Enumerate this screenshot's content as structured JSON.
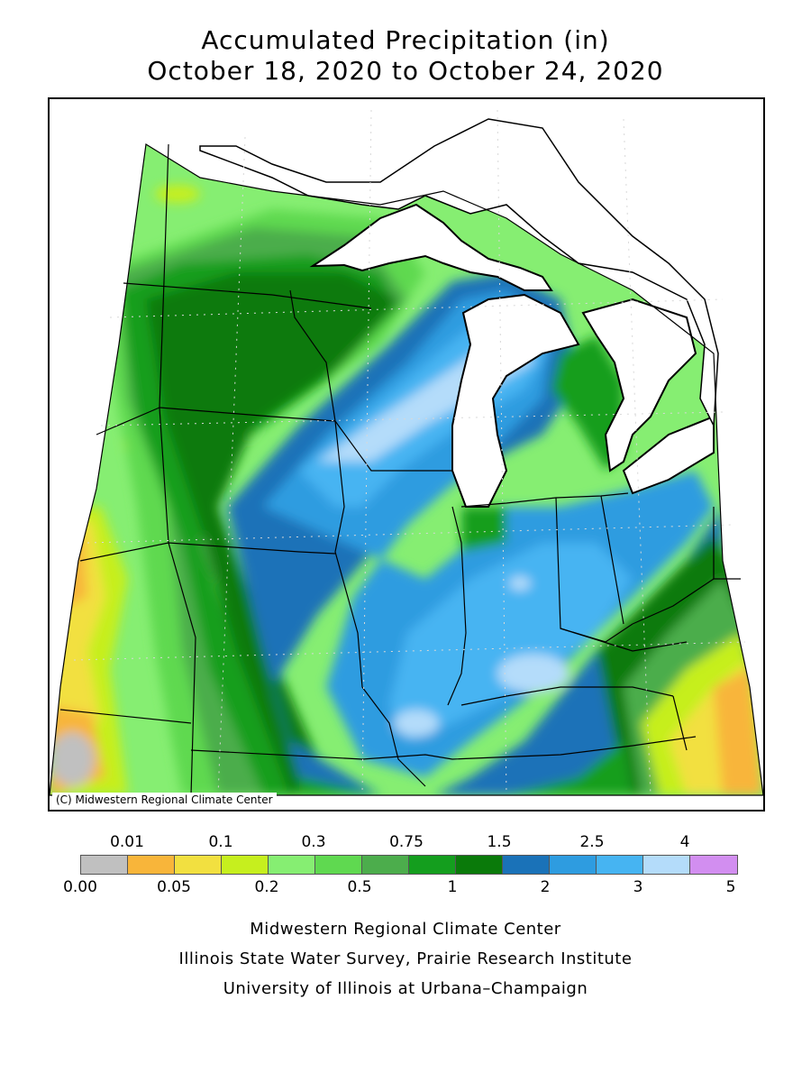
{
  "title": {
    "line1": "Accumulated Precipitation (in)",
    "line2": "October 18, 2020 to October 24, 2020"
  },
  "credit": "(C) Midwestern Regional Climate Center",
  "legend": {
    "top_labels": [
      "0.01",
      "0.1",
      "0.3",
      "0.75",
      "1.5",
      "2.5",
      "4"
    ],
    "bottom_labels": [
      "0.00",
      "0.05",
      "0.2",
      "0.5",
      "1",
      "2",
      "3",
      "5"
    ],
    "colors": [
      "#c0c0c0",
      "#f8b53a",
      "#f2e040",
      "#c6ef1e",
      "#86ee72",
      "#5fd950",
      "#4cad4c",
      "#149e1e",
      "#0a7a0a",
      "#1a72b8",
      "#2e9ce0",
      "#46b4f2",
      "#b4dcfa",
      "#d28ef0"
    ]
  },
  "footer": {
    "line1": "Midwestern Regional Climate Center",
    "line2": "Illinois State Water Survey, Prairie Research Institute",
    "line3": "University of Illinois at Urbana–Champaign"
  }
}
